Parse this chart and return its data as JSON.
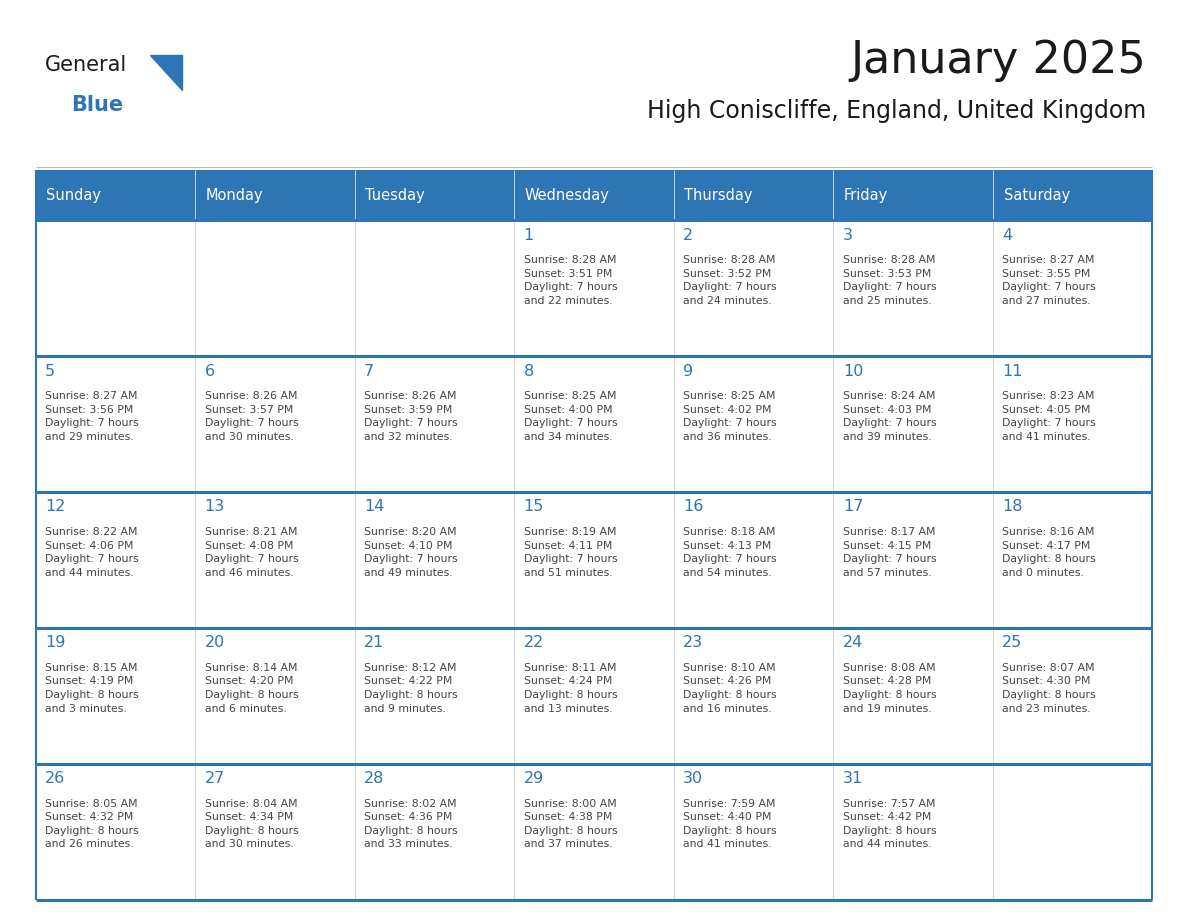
{
  "title": "January 2025",
  "subtitle": "High Coniscliffe, England, United Kingdom",
  "days_of_week": [
    "Sunday",
    "Monday",
    "Tuesday",
    "Wednesday",
    "Thursday",
    "Friday",
    "Saturday"
  ],
  "header_bg": "#2E75B6",
  "header_text": "#FFFFFF",
  "cell_bg_white": "#FFFFFF",
  "cell_border": "#CCCCCC",
  "day_number_color": "#2E75B6",
  "cell_text_color": "#444444",
  "title_color": "#1A1A1A",
  "subtitle_color": "#1A1A1A",
  "logo_general_color": "#1A1A1A",
  "logo_blue_color": "#2E75B6",
  "calendar_data": [
    [
      {
        "day": "",
        "info": ""
      },
      {
        "day": "",
        "info": ""
      },
      {
        "day": "",
        "info": ""
      },
      {
        "day": "1",
        "info": "Sunrise: 8:28 AM\nSunset: 3:51 PM\nDaylight: 7 hours\nand 22 minutes."
      },
      {
        "day": "2",
        "info": "Sunrise: 8:28 AM\nSunset: 3:52 PM\nDaylight: 7 hours\nand 24 minutes."
      },
      {
        "day": "3",
        "info": "Sunrise: 8:28 AM\nSunset: 3:53 PM\nDaylight: 7 hours\nand 25 minutes."
      },
      {
        "day": "4",
        "info": "Sunrise: 8:27 AM\nSunset: 3:55 PM\nDaylight: 7 hours\nand 27 minutes."
      }
    ],
    [
      {
        "day": "5",
        "info": "Sunrise: 8:27 AM\nSunset: 3:56 PM\nDaylight: 7 hours\nand 29 minutes."
      },
      {
        "day": "6",
        "info": "Sunrise: 8:26 AM\nSunset: 3:57 PM\nDaylight: 7 hours\nand 30 minutes."
      },
      {
        "day": "7",
        "info": "Sunrise: 8:26 AM\nSunset: 3:59 PM\nDaylight: 7 hours\nand 32 minutes."
      },
      {
        "day": "8",
        "info": "Sunrise: 8:25 AM\nSunset: 4:00 PM\nDaylight: 7 hours\nand 34 minutes."
      },
      {
        "day": "9",
        "info": "Sunrise: 8:25 AM\nSunset: 4:02 PM\nDaylight: 7 hours\nand 36 minutes."
      },
      {
        "day": "10",
        "info": "Sunrise: 8:24 AM\nSunset: 4:03 PM\nDaylight: 7 hours\nand 39 minutes."
      },
      {
        "day": "11",
        "info": "Sunrise: 8:23 AM\nSunset: 4:05 PM\nDaylight: 7 hours\nand 41 minutes."
      }
    ],
    [
      {
        "day": "12",
        "info": "Sunrise: 8:22 AM\nSunset: 4:06 PM\nDaylight: 7 hours\nand 44 minutes."
      },
      {
        "day": "13",
        "info": "Sunrise: 8:21 AM\nSunset: 4:08 PM\nDaylight: 7 hours\nand 46 minutes."
      },
      {
        "day": "14",
        "info": "Sunrise: 8:20 AM\nSunset: 4:10 PM\nDaylight: 7 hours\nand 49 minutes."
      },
      {
        "day": "15",
        "info": "Sunrise: 8:19 AM\nSunset: 4:11 PM\nDaylight: 7 hours\nand 51 minutes."
      },
      {
        "day": "16",
        "info": "Sunrise: 8:18 AM\nSunset: 4:13 PM\nDaylight: 7 hours\nand 54 minutes."
      },
      {
        "day": "17",
        "info": "Sunrise: 8:17 AM\nSunset: 4:15 PM\nDaylight: 7 hours\nand 57 minutes."
      },
      {
        "day": "18",
        "info": "Sunrise: 8:16 AM\nSunset: 4:17 PM\nDaylight: 8 hours\nand 0 minutes."
      }
    ],
    [
      {
        "day": "19",
        "info": "Sunrise: 8:15 AM\nSunset: 4:19 PM\nDaylight: 8 hours\nand 3 minutes."
      },
      {
        "day": "20",
        "info": "Sunrise: 8:14 AM\nSunset: 4:20 PM\nDaylight: 8 hours\nand 6 minutes."
      },
      {
        "day": "21",
        "info": "Sunrise: 8:12 AM\nSunset: 4:22 PM\nDaylight: 8 hours\nand 9 minutes."
      },
      {
        "day": "22",
        "info": "Sunrise: 8:11 AM\nSunset: 4:24 PM\nDaylight: 8 hours\nand 13 minutes."
      },
      {
        "day": "23",
        "info": "Sunrise: 8:10 AM\nSunset: 4:26 PM\nDaylight: 8 hours\nand 16 minutes."
      },
      {
        "day": "24",
        "info": "Sunrise: 8:08 AM\nSunset: 4:28 PM\nDaylight: 8 hours\nand 19 minutes."
      },
      {
        "day": "25",
        "info": "Sunrise: 8:07 AM\nSunset: 4:30 PM\nDaylight: 8 hours\nand 23 minutes."
      }
    ],
    [
      {
        "day": "26",
        "info": "Sunrise: 8:05 AM\nSunset: 4:32 PM\nDaylight: 8 hours\nand 26 minutes."
      },
      {
        "day": "27",
        "info": "Sunrise: 8:04 AM\nSunset: 4:34 PM\nDaylight: 8 hours\nand 30 minutes."
      },
      {
        "day": "28",
        "info": "Sunrise: 8:02 AM\nSunset: 4:36 PM\nDaylight: 8 hours\nand 33 minutes."
      },
      {
        "day": "29",
        "info": "Sunrise: 8:00 AM\nSunset: 4:38 PM\nDaylight: 8 hours\nand 37 minutes."
      },
      {
        "day": "30",
        "info": "Sunrise: 7:59 AM\nSunset: 4:40 PM\nDaylight: 8 hours\nand 41 minutes."
      },
      {
        "day": "31",
        "info": "Sunrise: 7:57 AM\nSunset: 4:42 PM\nDaylight: 8 hours\nand 44 minutes."
      },
      {
        "day": "",
        "info": ""
      }
    ]
  ]
}
